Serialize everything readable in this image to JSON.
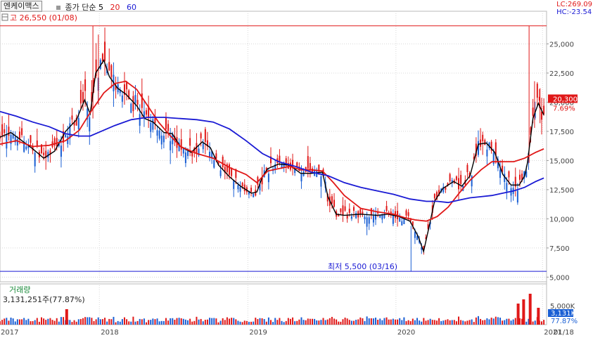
{
  "toolbar": {
    "symbol": "엔케이맥스",
    "indicator_label": "종가 단순",
    "ma_periods": [
      "5",
      "20",
      "60"
    ],
    "ma_colors": [
      "#000000",
      "#e01818",
      "#1a1ad4"
    ]
  },
  "header_right": {
    "lc": "LC:269.09",
    "hc": "HC:-23.54"
  },
  "chart_data": {
    "type": "line",
    "title": "",
    "price_axis": {
      "ticks": [
        "25,000",
        "22,500",
        "20,000",
        "17,500",
        "15,000",
        "12,500",
        "10,000",
        "7,500",
        "5,000"
      ],
      "tick_values": [
        25000,
        22500,
        20000,
        17500,
        15000,
        12500,
        10000,
        7500,
        5000
      ],
      "ylim": [
        4600,
        27800
      ]
    },
    "x_axis": {
      "labels": [
        "2017",
        "2018",
        "2019",
        "2020",
        "2021",
        "01/18"
      ],
      "label_positions": [
        0,
        0.1818,
        0.4535,
        0.7244,
        0.9926,
        1.0
      ]
    },
    "annotations": {
      "high": "고 26,550 (01/08)",
      "high_value": 26550,
      "low": "최저 5,500 (03/16)",
      "low_value": 5500,
      "current_price": "20,300",
      "current_value": 20300,
      "change_pct": "7.69%"
    },
    "ma_series": [
      {
        "period": 5,
        "color": "#000000",
        "points": [
          [
            0,
            17000
          ],
          [
            0.02,
            17400
          ],
          [
            0.04,
            16700
          ],
          [
            0.06,
            16000
          ],
          [
            0.08,
            15200
          ],
          [
            0.1,
            15800
          ],
          [
            0.12,
            17500
          ],
          [
            0.14,
            18500
          ],
          [
            0.155,
            20200
          ],
          [
            0.165,
            19000
          ],
          [
            0.175,
            22500
          ],
          [
            0.19,
            23600
          ],
          [
            0.2,
            22200
          ],
          [
            0.215,
            21200
          ],
          [
            0.23,
            20700
          ],
          [
            0.25,
            19700
          ],
          [
            0.265,
            18600
          ],
          [
            0.28,
            18300
          ],
          [
            0.3,
            17400
          ],
          [
            0.315,
            17300
          ],
          [
            0.33,
            16200
          ],
          [
            0.35,
            15700
          ],
          [
            0.37,
            16600
          ],
          [
            0.385,
            16100
          ],
          [
            0.4,
            14600
          ],
          [
            0.42,
            13600
          ],
          [
            0.44,
            12800
          ],
          [
            0.46,
            12200
          ],
          [
            0.47,
            12300
          ],
          [
            0.48,
            13600
          ],
          [
            0.49,
            14300
          ],
          [
            0.51,
            14700
          ],
          [
            0.53,
            14600
          ],
          [
            0.55,
            13900
          ],
          [
            0.57,
            13900
          ],
          [
            0.59,
            14000
          ],
          [
            0.6,
            11900
          ],
          [
            0.615,
            10400
          ],
          [
            0.63,
            10300
          ],
          [
            0.66,
            10400
          ],
          [
            0.69,
            10300
          ],
          [
            0.71,
            10400
          ],
          [
            0.73,
            10200
          ],
          [
            0.75,
            9800
          ],
          [
            0.765,
            8500
          ],
          [
            0.775,
            7200
          ],
          [
            0.785,
            9300
          ],
          [
            0.795,
            11500
          ],
          [
            0.81,
            12600
          ],
          [
            0.83,
            13200
          ],
          [
            0.845,
            12800
          ],
          [
            0.86,
            13700
          ],
          [
            0.875,
            16400
          ],
          [
            0.89,
            16500
          ],
          [
            0.905,
            15700
          ],
          [
            0.92,
            13800
          ],
          [
            0.935,
            12900
          ],
          [
            0.95,
            12900
          ],
          [
            0.96,
            13700
          ],
          [
            0.965,
            14800
          ],
          [
            0.975,
            18600
          ],
          [
            0.985,
            19900
          ],
          [
            0.995,
            18900
          ]
        ]
      },
      {
        "period": 20,
        "color": "#e01818",
        "points": [
          [
            0,
            16400
          ],
          [
            0.03,
            16700
          ],
          [
            0.06,
            16200
          ],
          [
            0.09,
            16300
          ],
          [
            0.12,
            16700
          ],
          [
            0.145,
            17600
          ],
          [
            0.165,
            19100
          ],
          [
            0.19,
            20800
          ],
          [
            0.21,
            21600
          ],
          [
            0.23,
            21800
          ],
          [
            0.25,
            21100
          ],
          [
            0.27,
            19700
          ],
          [
            0.29,
            18300
          ],
          [
            0.31,
            17200
          ],
          [
            0.33,
            16200
          ],
          [
            0.36,
            15600
          ],
          [
            0.39,
            15200
          ],
          [
            0.42,
            14400
          ],
          [
            0.45,
            13800
          ],
          [
            0.47,
            13100
          ],
          [
            0.49,
            14100
          ],
          [
            0.51,
            14300
          ],
          [
            0.53,
            14500
          ],
          [
            0.55,
            14200
          ],
          [
            0.57,
            14200
          ],
          [
            0.59,
            14100
          ],
          [
            0.61,
            13100
          ],
          [
            0.63,
            12000
          ],
          [
            0.66,
            10900
          ],
          [
            0.69,
            10600
          ],
          [
            0.72,
            10400
          ],
          [
            0.74,
            10100
          ],
          [
            0.76,
            9900
          ],
          [
            0.78,
            9800
          ],
          [
            0.8,
            10200
          ],
          [
            0.82,
            11000
          ],
          [
            0.84,
            12200
          ],
          [
            0.86,
            13300
          ],
          [
            0.88,
            14200
          ],
          [
            0.9,
            14900
          ],
          [
            0.92,
            14900
          ],
          [
            0.94,
            14900
          ],
          [
            0.96,
            15200
          ],
          [
            0.98,
            15700
          ],
          [
            0.995,
            16000
          ]
        ]
      },
      {
        "period": 60,
        "color": "#1a1ad4",
        "points": [
          [
            0,
            19200
          ],
          [
            0.03,
            18800
          ],
          [
            0.06,
            18300
          ],
          [
            0.09,
            17900
          ],
          [
            0.12,
            17300
          ],
          [
            0.145,
            17100
          ],
          [
            0.165,
            17100
          ],
          [
            0.185,
            17500
          ],
          [
            0.21,
            18000
          ],
          [
            0.24,
            18500
          ],
          [
            0.27,
            18700
          ],
          [
            0.3,
            18700
          ],
          [
            0.33,
            18600
          ],
          [
            0.36,
            18500
          ],
          [
            0.39,
            18300
          ],
          [
            0.42,
            17700
          ],
          [
            0.45,
            16700
          ],
          [
            0.48,
            15600
          ],
          [
            0.51,
            14900
          ],
          [
            0.54,
            14500
          ],
          [
            0.57,
            14000
          ],
          [
            0.6,
            13700
          ],
          [
            0.63,
            13100
          ],
          [
            0.66,
            12700
          ],
          [
            0.69,
            12400
          ],
          [
            0.72,
            12100
          ],
          [
            0.75,
            11700
          ],
          [
            0.78,
            11500
          ],
          [
            0.8,
            11500
          ],
          [
            0.82,
            11400
          ],
          [
            0.84,
            11600
          ],
          [
            0.86,
            11800
          ],
          [
            0.88,
            11900
          ],
          [
            0.9,
            12000
          ],
          [
            0.92,
            12200
          ],
          [
            0.94,
            12400
          ],
          [
            0.96,
            12700
          ],
          [
            0.98,
            13200
          ],
          [
            0.995,
            13500
          ]
        ]
      }
    ],
    "volume": {
      "label": "거래량",
      "value": "3,131,251주(77.87%)",
      "axis_ticks": [
        "5,000K"
      ],
      "current_badge": "3,131K",
      "current_pct": "77.87%"
    }
  }
}
